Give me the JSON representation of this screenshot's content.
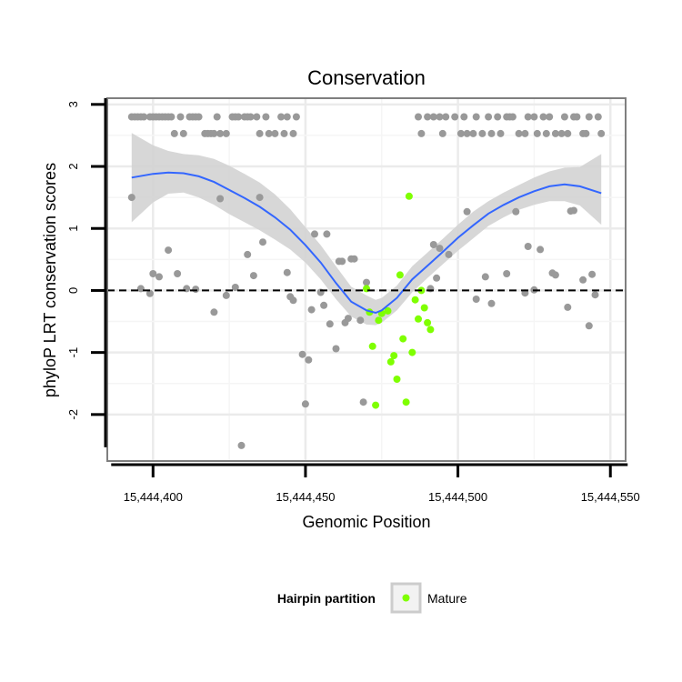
{
  "chart_data": {
    "type": "scatter",
    "title": "Conservation",
    "xlabel": "Genomic Position",
    "ylabel": "phyloP LRT conservation scores",
    "xlim": [
      15444385,
      15444555
    ],
    "ylim": [
      -2.75,
      3.1
    ],
    "x_ticks": [
      15444400,
      15444450,
      15444500,
      15444550
    ],
    "x_tick_labels": [
      "15,444,400",
      "15,444,450",
      "15,444,500",
      "15,444,550"
    ],
    "y_ticks": [
      3,
      2,
      1,
      0,
      -1,
      -2
    ],
    "y_tick_labels": [
      "3",
      "2",
      "1",
      "0",
      "-1",
      "-2"
    ],
    "reference_line": {
      "y": 0,
      "style": "dashed"
    },
    "legend": {
      "title": "Hairpin partition",
      "entries": [
        {
          "label": "Mature",
          "color": "#7FFF00"
        }
      ]
    },
    "colors": {
      "other": "#999999",
      "mature": "#7FFF00",
      "smooth": "#3366FF",
      "band": "#D3D3D3",
      "grid": "#EBEBEB",
      "border": "#7F7F7F"
    },
    "smooth": {
      "x": [
        15444393,
        15444400,
        15444405,
        15444410,
        15444415,
        15444420,
        15444425,
        15444430,
        15444435,
        15444440,
        15444445,
        15444450,
        15444455,
        15444460,
        15444465,
        15444470,
        15444473,
        15444475,
        15444480,
        15444485,
        15444490,
        15444495,
        15444500,
        15444505,
        15444510,
        15444515,
        15444520,
        15444525,
        15444530,
        15444535,
        15444540,
        15444547
      ],
      "y": [
        1.82,
        1.88,
        1.9,
        1.89,
        1.84,
        1.75,
        1.62,
        1.49,
        1.35,
        1.18,
        0.98,
        0.73,
        0.45,
        0.12,
        -0.18,
        -0.32,
        -0.36,
        -0.32,
        -0.12,
        0.18,
        0.4,
        0.62,
        0.85,
        1.05,
        1.24,
        1.38,
        1.5,
        1.6,
        1.68,
        1.71,
        1.68,
        1.57
      ],
      "lower": [
        1.1,
        1.42,
        1.56,
        1.58,
        1.5,
        1.38,
        1.23,
        1.1,
        0.97,
        0.82,
        0.66,
        0.45,
        0.18,
        -0.14,
        -0.42,
        -0.55,
        -0.56,
        -0.52,
        -0.32,
        -0.03,
        0.2,
        0.42,
        0.64,
        0.84,
        1.04,
        1.18,
        1.3,
        1.38,
        1.44,
        1.44,
        1.37,
        1.06
      ],
      "upper": [
        2.54,
        2.34,
        2.25,
        2.2,
        2.18,
        2.12,
        2.01,
        1.88,
        1.74,
        1.55,
        1.31,
        1.02,
        0.73,
        0.39,
        0.06,
        -0.08,
        -0.15,
        -0.12,
        0.08,
        0.39,
        0.61,
        0.83,
        1.06,
        1.27,
        1.44,
        1.58,
        1.7,
        1.82,
        1.92,
        1.98,
        1.99,
        2.2
      ]
    },
    "series": [
      {
        "name": "Other",
        "x": [
          15444393,
          15444394,
          15444395,
          15444396,
          15444397,
          15444399,
          15444400,
          15444401,
          15444402,
          15444403,
          15444404,
          15444405,
          15444406,
          15444407,
          15444409,
          15444410,
          15444412,
          15444413,
          15444414,
          15444415,
          15444417,
          15444418,
          15444419,
          15444420,
          15444421,
          15444422,
          15444424,
          15444426,
          15444427,
          15444428,
          15444430,
          15444431,
          15444432,
          15444434,
          15444435,
          15444437,
          15444438,
          15444440,
          15444442,
          15444443,
          15444444,
          15444446,
          15444447,
          15444487,
          15444488,
          15444490,
          15444492,
          15444494,
          15444495,
          15444496,
          15444499,
          15444501,
          15444502,
          15444503,
          15444505,
          15444506,
          15444508,
          15444510,
          15444511,
          15444513,
          15444514,
          15444516,
          15444517,
          15444518,
          15444520,
          15444522,
          15444523,
          15444525,
          15444526,
          15444528,
          15444529,
          15444530,
          15444532,
          15444534,
          15444535,
          15444536,
          15444538,
          15444539,
          15444541,
          15444542,
          15444543,
          15444546,
          15444393,
          15444396,
          15444399,
          15444400,
          15444402,
          15444405,
          15444408,
          15444411,
          15444414,
          15444420,
          15444422,
          15444424,
          15444427,
          15444429,
          15444431,
          15444433,
          15444435,
          15444436,
          15444444,
          15444445,
          15444446,
          15444449,
          15444450,
          15444451,
          15444452,
          15444453,
          15444455,
          15444456,
          15444457,
          15444458,
          15444460,
          15444461,
          15444462,
          15444463,
          15444464,
          15444465,
          15444466,
          15444468,
          15444469,
          15444470,
          15444491,
          15444492,
          15444493,
          15444494,
          15444497,
          15444503,
          15444506,
          15444509,
          15444511,
          15444516,
          15444519,
          15444522,
          15444523,
          15444525,
          15444527,
          15444531,
          15444532,
          15444536,
          15444537,
          15444538,
          15444541,
          15444543,
          15444544,
          15444545,
          15444547
        ],
        "y": [
          2.8,
          2.8,
          2.8,
          2.8,
          2.8,
          2.8,
          2.8,
          2.8,
          2.8,
          2.8,
          2.8,
          2.8,
          2.8,
          2.53,
          2.8,
          2.53,
          2.8,
          2.8,
          2.8,
          2.8,
          2.53,
          2.53,
          2.53,
          2.53,
          2.8,
          2.53,
          2.53,
          2.8,
          2.8,
          2.8,
          2.8,
          2.8,
          2.8,
          2.8,
          2.53,
          2.8,
          2.53,
          2.53,
          2.8,
          2.53,
          2.8,
          2.53,
          2.8,
          2.8,
          2.53,
          2.8,
          2.8,
          2.8,
          2.53,
          2.8,
          2.8,
          2.53,
          2.8,
          2.53,
          2.53,
          2.8,
          2.53,
          2.8,
          2.53,
          2.8,
          2.53,
          2.8,
          2.8,
          2.8,
          2.53,
          2.53,
          2.8,
          2.8,
          2.53,
          2.8,
          2.53,
          2.8,
          2.53,
          2.53,
          2.8,
          2.53,
          2.8,
          2.8,
          2.53,
          2.53,
          2.8,
          2.8,
          1.5,
          0.03,
          -0.05,
          0.27,
          0.22,
          0.65,
          0.27,
          0.03,
          0.02,
          -0.35,
          1.48,
          -0.08,
          0.05,
          -2.5,
          0.58,
          0.24,
          1.5,
          0.78,
          0.29,
          -0.1,
          -0.16,
          -1.03,
          -1.83,
          -1.12,
          -0.31,
          0.91,
          -0.03,
          -0.24,
          0.91,
          -0.54,
          -0.94,
          0.47,
          0.47,
          -0.52,
          -0.45,
          0.51,
          0.51,
          -0.48,
          -1.8,
          0.13,
          0.03,
          0.74,
          0.2,
          0.68,
          0.58,
          1.27,
          -0.14,
          0.22,
          -0.21,
          0.27,
          1.27,
          -0.04,
          0.71,
          0.01,
          0.66,
          0.28,
          0.25,
          -0.27,
          1.28,
          1.29,
          0.17,
          -0.57,
          0.26,
          -0.07,
          2.53
        ]
      },
      {
        "name": "Mature",
        "x": [
          15444470,
          15444471,
          15444472,
          15444473,
          15444474,
          15444475,
          15444477,
          15444478,
          15444479,
          15444480,
          15444481,
          15444482,
          15444483,
          15444484,
          15444485,
          15444486,
          15444487,
          15444488,
          15444489,
          15444490,
          15444491
        ],
        "y": [
          0.03,
          -0.35,
          -0.9,
          -1.85,
          -0.48,
          -0.37,
          -0.33,
          -1.15,
          -1.05,
          -1.43,
          0.25,
          -0.78,
          -1.8,
          1.52,
          -1.0,
          -0.15,
          -0.46,
          0.0,
          -0.28,
          -0.52,
          -0.63
        ]
      }
    ]
  }
}
